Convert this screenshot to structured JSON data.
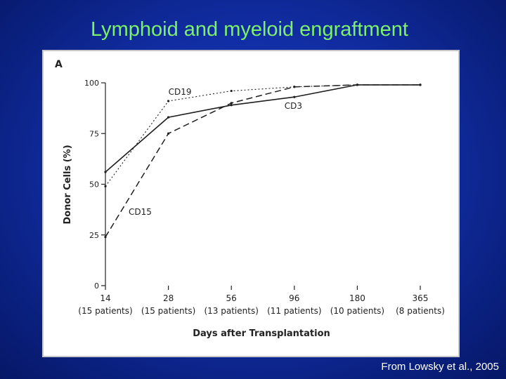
{
  "slide": {
    "title": "Lymphoid and myeloid engraftment",
    "citation": "From Lowsky et al., 2005"
  },
  "chart_data": {
    "type": "line",
    "panel_label": "A",
    "title": "",
    "xlabel": "Days after Transplantation",
    "ylabel": "Donor Cells (%)",
    "ylim": [
      0,
      100
    ],
    "yticks": [
      0,
      25,
      50,
      75,
      100
    ],
    "categories": [
      "14",
      "28",
      "56",
      "96",
      "180",
      "365"
    ],
    "category_sublabels": [
      "(15 patients)",
      "(15 patients)",
      "(13 patients)",
      "(11 patients)",
      "(10 patients)",
      "(8 patients)"
    ],
    "series": [
      {
        "name": "CD19",
        "style": "dotted",
        "values": [
          49,
          91,
          96,
          98,
          99,
          99
        ]
      },
      {
        "name": "CD3",
        "style": "solid",
        "values": [
          56,
          83,
          89,
          93,
          99,
          99
        ]
      },
      {
        "name": "CD15",
        "style": "dashed",
        "values": [
          24,
          75,
          90,
          98,
          99,
          99
        ]
      }
    ],
    "grid": false,
    "colors": {
      "lines": "#1e1e1e",
      "panel_background": "#ffffff"
    }
  }
}
